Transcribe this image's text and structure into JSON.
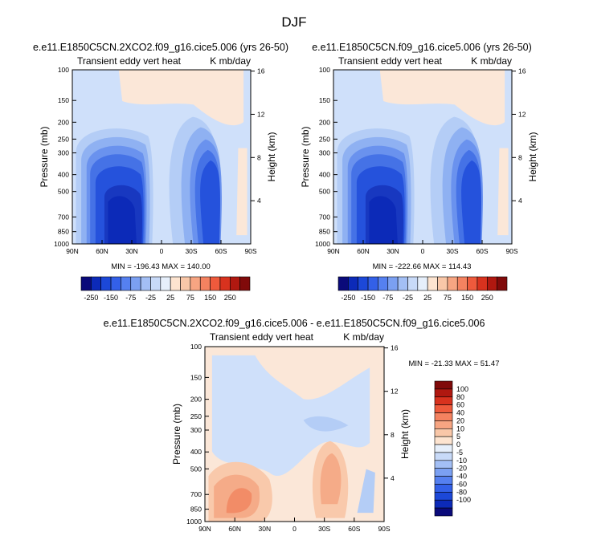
{
  "figure": {
    "title": "DJF"
  },
  "chart_data": [
    {
      "type": "heatmap",
      "title": "e.e11.E1850C5CN.2XCO2.f09_g16.cice5.006 (yrs 26-50)",
      "left_label": "Transient eddy vert heat",
      "right_label": "K mb/day",
      "xlabel": "",
      "ylabel": "Pressure (mb)",
      "y2label": "Height (km)",
      "x_ticks": [
        "90N",
        "60N",
        "30N",
        "0",
        "30S",
        "60S",
        "90S"
      ],
      "x_values": [
        90,
        60,
        30,
        0,
        -30,
        -60,
        -90
      ],
      "y_ticks": [
        "100",
        "150",
        "200",
        "250",
        "300",
        "400",
        "500",
        "700",
        "850",
        "1000"
      ],
      "y_values": [
        100,
        150,
        200,
        250,
        300,
        400,
        500,
        700,
        850,
        1000
      ],
      "y2_ticks": [
        "16",
        "12",
        "8",
        "4"
      ],
      "y2_values": [
        16,
        12,
        8,
        4
      ],
      "ylim": [
        1000,
        100
      ],
      "xlim": [
        90,
        -90
      ],
      "stats": "MIN = -196.43  MAX = 140.00",
      "features": [
        {
          "lat": 48,
          "p": 700,
          "value": -200
        },
        {
          "lat": -45,
          "p": 600,
          "value": -180
        },
        {
          "lat": 10,
          "p": 130,
          "value": 5
        }
      ]
    },
    {
      "type": "heatmap",
      "title": "e.e11.E1850C5CN.f09_g16.cice5.006 (yrs 26-50)",
      "left_label": "Transient eddy vert heat",
      "right_label": "K mb/day",
      "xlabel": "",
      "ylabel": "Pressure (mb)",
      "y2label": "Height (km)",
      "x_ticks": [
        "90N",
        "60N",
        "30N",
        "0",
        "30S",
        "60S",
        "90S"
      ],
      "x_values": [
        90,
        60,
        30,
        0,
        -30,
        -60,
        -90
      ],
      "y_ticks": [
        "100",
        "150",
        "200",
        "250",
        "300",
        "400",
        "500",
        "700",
        "850",
        "1000"
      ],
      "y_values": [
        100,
        150,
        200,
        250,
        300,
        400,
        500,
        700,
        850,
        1000
      ],
      "y2_ticks": [
        "16",
        "12",
        "8",
        "4"
      ],
      "y2_values": [
        16,
        12,
        8,
        4
      ],
      "ylim": [
        1000,
        100
      ],
      "xlim": [
        90,
        -90
      ],
      "stats": "MIN = -222.66  MAX = 114.43",
      "features": [
        {
          "lat": 48,
          "p": 700,
          "value": -220
        },
        {
          "lat": -45,
          "p": 600,
          "value": -190
        },
        {
          "lat": 10,
          "p": 130,
          "value": 5
        }
      ]
    },
    {
      "type": "heatmap",
      "title": "e.e11.E1850C5CN.2XCO2.f09_g16.cice5.006 - e.e11.E1850C5CN.f09_g16.cice5.006",
      "left_label": "Transient eddy vert heat",
      "right_label": "K mb/day",
      "xlabel": "",
      "ylabel": "Pressure (mb)",
      "y2label": "Height (km)",
      "x_ticks": [
        "90N",
        "60N",
        "30N",
        "0",
        "30S",
        "60S",
        "90S"
      ],
      "x_values": [
        90,
        60,
        30,
        0,
        -30,
        -60,
        -90
      ],
      "y_ticks": [
        "100",
        "150",
        "200",
        "250",
        "300",
        "400",
        "500",
        "700",
        "850",
        "1000"
      ],
      "y_values": [
        100,
        150,
        200,
        250,
        300,
        400,
        500,
        700,
        850,
        1000
      ],
      "y2_ticks": [
        "16",
        "12",
        "8",
        "4"
      ],
      "y2_values": [
        16,
        12,
        8,
        4
      ],
      "ylim": [
        1000,
        100
      ],
      "xlim": [
        90,
        -90
      ],
      "stats": "MIN = -21.33  MAX = 51.47",
      "features": [
        {
          "lat": 55,
          "p": 750,
          "value": 30
        },
        {
          "lat": -45,
          "p": 600,
          "value": 25
        },
        {
          "lat": 0,
          "p": 300,
          "value": -5
        }
      ]
    }
  ],
  "colorbars": [
    {
      "orientation": "horizontal",
      "colors": [
        "#0a0a7a",
        "#0c2ab8",
        "#1c48d8",
        "#3360e8",
        "#5580f0",
        "#7ba0f2",
        "#a3bff5",
        "#c8daf8",
        "#e6effb",
        "#fde4d0",
        "#f9c7a8",
        "#f7a582",
        "#f48260",
        "#ee5a3c",
        "#d8321e",
        "#b01810",
        "#800a0a"
      ],
      "labels": [
        "-250",
        "-150",
        "-75",
        "-25",
        "25",
        "75",
        "150",
        "250"
      ]
    },
    {
      "orientation": "horizontal",
      "colors": [
        "#0a0a7a",
        "#0c2ab8",
        "#1c48d8",
        "#3360e8",
        "#5580f0",
        "#7ba0f2",
        "#a3bff5",
        "#c8daf8",
        "#e6effb",
        "#fde4d0",
        "#f9c7a8",
        "#f7a582",
        "#f48260",
        "#ee5a3c",
        "#d8321e",
        "#b01810",
        "#800a0a"
      ],
      "labels": [
        "-250",
        "-150",
        "-75",
        "-25",
        "25",
        "75",
        "150",
        "250"
      ]
    },
    {
      "orientation": "vertical",
      "colors": [
        "#800a0a",
        "#b01810",
        "#d8321e",
        "#ee5a3c",
        "#f48260",
        "#f7a582",
        "#f9c7a8",
        "#fde4d0",
        "#e6effb",
        "#c8daf8",
        "#a3bff5",
        "#7ba0f2",
        "#5580f0",
        "#3360e8",
        "#1c48d8",
        "#0c2ab8",
        "#0a0a7a"
      ],
      "labels": [
        "100",
        "80",
        "60",
        "40",
        "20",
        "10",
        "5",
        "0",
        "-5",
        "-10",
        "-20",
        "-40",
        "-60",
        "-80",
        "-100"
      ]
    }
  ],
  "palette": {
    "bg_blue": "#cfe0fa",
    "bg_tan": "#fbe7d8",
    "b1": "#b4cdf6",
    "b2": "#8fb1f2",
    "b3": "#6a92ee",
    "b4": "#4572e6",
    "b5": "#2552dc",
    "b6": "#1838c0",
    "r1": "#f9c9ab",
    "r2": "#f5ab88",
    "r3": "#f28c67"
  }
}
